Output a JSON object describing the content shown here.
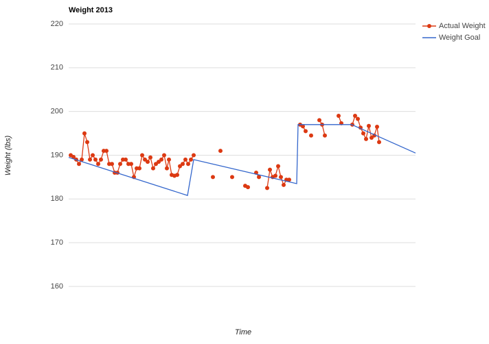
{
  "chart_data": {
    "type": "line",
    "title": "Weight 2013",
    "x_label": "Time",
    "y_label": "Weight (lbs)",
    "xlim": [
      0,
      505
    ],
    "ylim": [
      160,
      220
    ],
    "yticks": [
      160,
      170,
      180,
      190,
      200,
      210,
      220
    ],
    "grid": true,
    "legend": "right",
    "series": [
      {
        "name": "Actual Weight",
        "color": "#dc3912",
        "markers": true,
        "x": [
          3,
          7,
          11,
          15,
          19,
          23,
          27,
          31,
          35,
          39,
          43,
          47,
          51,
          55,
          59,
          63,
          67,
          71,
          75,
          79,
          83,
          87,
          91,
          95,
          99,
          103,
          107,
          111,
          115,
          119,
          123,
          127,
          131,
          135,
          139,
          143,
          146,
          150,
          154,
          158,
          162,
          166,
          170,
          174,
          178,
          182,
          null,
          210,
          null,
          221,
          null,
          238,
          null,
          257,
          261,
          null,
          273,
          277,
          null,
          289,
          293,
          297,
          301,
          305,
          309,
          313,
          317,
          321,
          null,
          337,
          341,
          345,
          null,
          353,
          null,
          365,
          369,
          373,
          null,
          393,
          397,
          null,
          413,
          417,
          421,
          425,
          429,
          433,
          437,
          441,
          445,
          449,
          452
        ],
        "values": [
          190,
          189.6,
          189,
          188,
          189,
          195,
          193,
          189,
          190,
          189,
          188,
          189,
          191,
          191,
          188,
          188,
          186,
          186,
          188,
          189,
          189,
          188,
          188,
          185,
          187,
          187,
          190,
          189,
          188.5,
          189.5,
          187,
          188,
          188.5,
          189,
          190,
          187,
          189,
          185.5,
          185.3,
          185.5,
          187.5,
          188,
          189,
          188,
          189,
          190,
          null,
          185,
          null,
          191,
          null,
          185,
          null,
          183,
          182.7,
          null,
          186,
          185,
          null,
          182.5,
          186.7,
          185,
          185.3,
          187.5,
          185,
          183.2,
          184.4,
          184.4,
          null,
          197,
          196.6,
          195.5,
          null,
          194.5,
          null,
          198,
          197,
          194.5,
          null,
          199,
          197.3,
          null,
          197,
          199,
          198.3,
          196.3,
          195,
          193.7,
          196.7,
          194,
          194.5,
          196.5,
          193
        ]
      },
      {
        "name": "Weight Goal",
        "color": "#3366cc",
        "markers": false,
        "x": [
          0,
          173,
          182,
          332,
          334,
          412,
          505
        ],
        "values": [
          189.5,
          180.8,
          189,
          183.5,
          197,
          197,
          190.5
        ]
      }
    ]
  }
}
